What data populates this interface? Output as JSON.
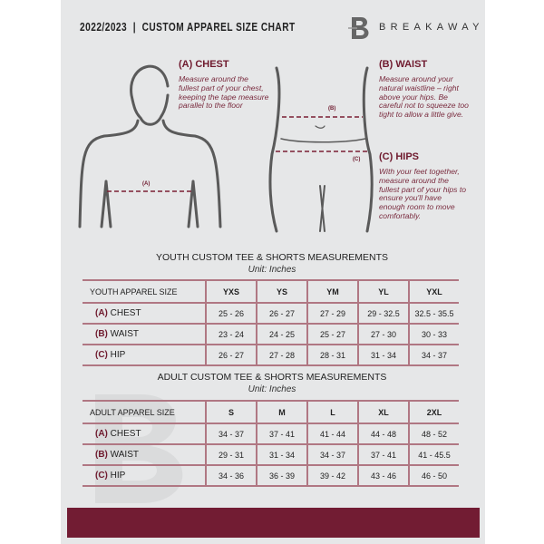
{
  "header": {
    "title": "2022/2023  |  CUSTOM APPAREL SIZE CHART",
    "brand": "BREAKAWAY",
    "logo_letter": "B"
  },
  "guide": {
    "chest": {
      "heading": "(A) CHEST",
      "text": "Measure around the fullest part of your chest, keeping the tape measure parallel to the floor",
      "marker": "(A)"
    },
    "waist": {
      "heading": "(B) WAIST",
      "text": "Measure around your natural waistline – right above your hips. Be careful not to squeeze too tight to allow a little give.",
      "marker": "(B)"
    },
    "hips": {
      "heading": "(C) HIPS",
      "text": "With your feet together, measure around the fullest part of your hips to ensure you'll have enough room to move comfortably.",
      "marker": "(C)"
    }
  },
  "youth": {
    "title": "YOUTH CUSTOM TEE & SHORTS MEASUREMENTS",
    "unit": "Unit: Inches",
    "header": [
      "YOUTH APPAREL SIZE",
      "YXS",
      "YS",
      "YM",
      "YL",
      "YXL"
    ],
    "rows": [
      {
        "code": "(A)",
        "name": "CHEST",
        "values": [
          "25 - 26",
          "26 - 27",
          "27 - 29",
          "29 - 32.5",
          "32.5 - 35.5"
        ]
      },
      {
        "code": "(B)",
        "name": "WAIST",
        "values": [
          "23 - 24",
          "24 - 25",
          "25 - 27",
          "27 - 30",
          "30 - 33"
        ]
      },
      {
        "code": "(C)",
        "name": "HIP",
        "values": [
          "26 - 27",
          "27 - 28",
          "28 - 31",
          "31 - 34",
          "34 - 37"
        ]
      }
    ]
  },
  "adult": {
    "title": "ADULT CUSTOM TEE & SHORTS MEASUREMENTS",
    "unit": "Unit: Inches",
    "header": [
      "ADULT APPAREL SIZE",
      "S",
      "M",
      "L",
      "XL",
      "2XL"
    ],
    "rows": [
      {
        "code": "(A)",
        "name": "CHEST",
        "values": [
          "34 - 37",
          "37 - 41",
          "41 - 44",
          "44 - 48",
          "48 - 52"
        ]
      },
      {
        "code": "(B)",
        "name": "WAIST",
        "values": [
          "29 - 31",
          "31 - 34",
          "34 - 37",
          "37 - 41",
          "41 - 45.5"
        ]
      },
      {
        "code": "(C)",
        "name": "HIP",
        "values": [
          "34 - 36",
          "36 - 39",
          "39 - 42",
          "43 - 46",
          "46 - 50"
        ]
      }
    ]
  },
  "colors": {
    "accent": "#721c33",
    "panel": "#e6e7e8",
    "grid": "#b07783"
  }
}
